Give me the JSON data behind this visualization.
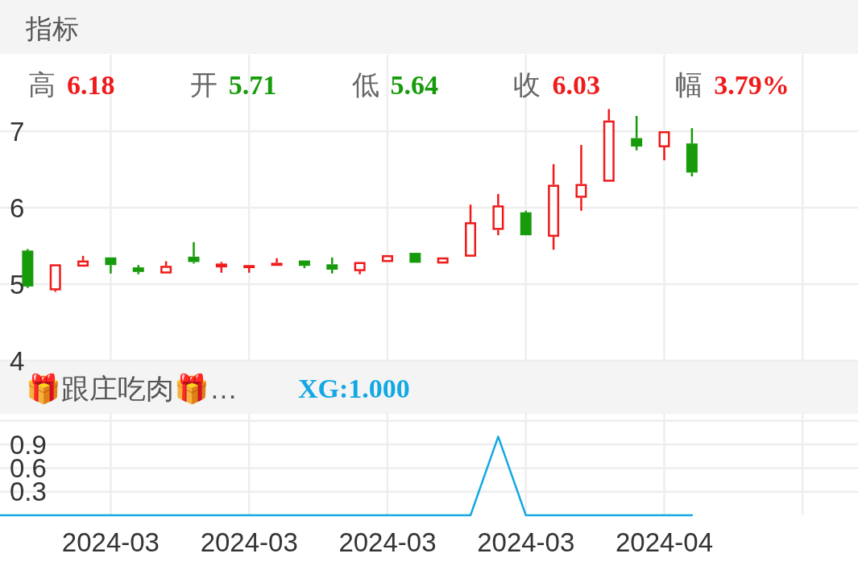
{
  "chart_data": [
    {
      "type": "candlestick",
      "title": "指标",
      "annotations": [
        "高 6.18",
        "开 5.71",
        "低 5.64",
        "收 6.03",
        "幅 3.79%"
      ],
      "categories": [
        null,
        null,
        null,
        null,
        "2024-03",
        null,
        null,
        null,
        null,
        "2024-03",
        null,
        null,
        null,
        null,
        "2024-03",
        null,
        null,
        null,
        null,
        "2024-03",
        null,
        null,
        null,
        null,
        "2024-04",
        null,
        null,
        null,
        null,
        null
      ],
      "ohlc": [
        null,
        [
          5.44,
          5.46,
          4.95,
          4.97
        ],
        [
          4.92,
          5.26,
          4.9,
          5.26
        ],
        [
          5.23,
          5.37,
          5.23,
          5.31
        ],
        [
          5.35,
          5.35,
          5.14,
          5.25
        ],
        [
          5.22,
          5.25,
          5.13,
          5.16
        ],
        [
          5.14,
          5.3,
          5.14,
          5.24
        ],
        [
          5.36,
          5.55,
          5.27,
          5.29
        ],
        [
          5.22,
          5.29,
          5.15,
          5.27
        ],
        [
          5.21,
          5.25,
          5.15,
          5.25
        ],
        [
          5.24,
          5.34,
          5.24,
          5.28
        ],
        [
          5.31,
          5.31,
          5.21,
          5.24
        ],
        [
          5.26,
          5.35,
          5.14,
          5.19
        ],
        [
          5.17,
          5.29,
          5.13,
          5.29
        ],
        [
          5.29,
          5.38,
          5.29,
          5.38
        ],
        [
          5.41,
          5.41,
          5.28,
          5.28
        ],
        [
          5.27,
          5.35,
          5.27,
          5.35
        ],
        [
          5.36,
          6.04,
          5.36,
          5.81
        ],
        [
          5.71,
          6.18,
          5.64,
          6.03
        ],
        [
          5.94,
          5.96,
          5.64,
          5.64
        ],
        [
          5.62,
          6.57,
          5.45,
          6.3
        ],
        [
          6.13,
          6.82,
          5.96,
          6.31
        ],
        [
          6.34,
          7.29,
          6.34,
          7.14
        ],
        [
          6.91,
          7.2,
          6.75,
          6.8
        ],
        [
          6.79,
          7.0,
          6.62,
          7.0
        ],
        [
          6.84,
          7.04,
          6.41,
          6.46
        ],
        null,
        null,
        null,
        null
      ],
      "colors": [
        null,
        "#179b0b",
        "#ef1a1a",
        "#ef1a1a",
        "#179b0b",
        "#179b0b",
        "#ef1a1a",
        "#179b0b",
        "#ef1a1a",
        "#ef1a1a",
        "#ef1a1a",
        "#179b0b",
        "#179b0b",
        "#ef1a1a",
        "#ef1a1a",
        "#179b0b",
        "#ef1a1a",
        "#ef1a1a",
        "#ef1a1a",
        "#179b0b",
        "#ef1a1a",
        "#ef1a1a",
        "#ef1a1a",
        "#179b0b",
        "#ef1a1a",
        "#179b0b",
        null,
        null,
        null,
        null
      ],
      "ylim": [
        4,
        8
      ],
      "yticks": [
        4,
        5,
        6,
        7
      ],
      "grid": true,
      "tick_labels": "y"
    },
    {
      "type": "line",
      "title": "🎁跟庄吃肉🎁…",
      "annotations": [
        "XG:1.000"
      ],
      "categories": [
        null,
        null,
        null,
        null,
        "2024-03",
        null,
        null,
        null,
        null,
        "2024-03",
        null,
        null,
        null,
        null,
        "2024-03",
        null,
        null,
        null,
        null,
        "2024-03",
        null,
        null,
        null,
        null,
        "2024-04",
        null,
        null,
        null,
        null,
        null
      ],
      "series": [
        {
          "color": "#13a8e3",
          "values": [
            0,
            0,
            0,
            0,
            0,
            0,
            0,
            0,
            0,
            0,
            0,
            0,
            0,
            0,
            0,
            0,
            0,
            0,
            1,
            0,
            0,
            0,
            0,
            0,
            0,
            0,
            null,
            null,
            null,
            null
          ]
        }
      ],
      "ylim": [
        0,
        1.3
      ],
      "yticks": [
        0.3,
        0.6,
        0.9,
        {
          "value": 1.2,
          "label": null
        }
      ],
      "grid": true
    }
  ]
}
